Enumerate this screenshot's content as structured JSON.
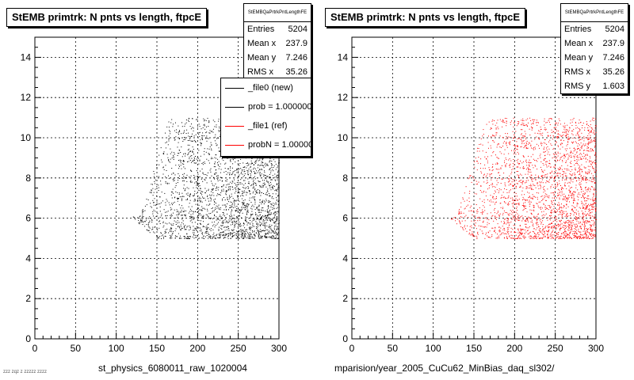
{
  "chart_data": [
    {
      "type": "scatter",
      "title": "StEMB primtrk: N pnts vs length, ftpcE",
      "xlabel": "st_physics_6080011_raw_1020004",
      "ylabel": "",
      "xlim": [
        0,
        300
      ],
      "ylim": [
        0,
        15
      ],
      "x_ticks": [
        0,
        50,
        100,
        150,
        200,
        250,
        300
      ],
      "y_ticks": [
        0,
        2,
        4,
        6,
        8,
        10,
        12,
        14
      ],
      "grid": true,
      "marker_color": "#000000",
      "point_region": {
        "x": [
          120,
          300
        ],
        "y": [
          5,
          11
        ]
      },
      "stats": {
        "name": "StEMBQaPrtrkPntLengthFE",
        "rows": [
          {
            "label": "Entries",
            "value": "5204"
          },
          {
            "label": "Mean x",
            "value": "237.9"
          },
          {
            "label": "Mean y",
            "value": "7.246"
          },
          {
            "label": "RMS x",
            "value": "35.26"
          }
        ]
      },
      "legend": {
        "placement": "top-right",
        "entries": [
          {
            "text": "_file0 (new)",
            "color": "#000000"
          },
          {
            "text": "prob = 1.000000",
            "color": "#000000"
          },
          {
            "text": "_file1 (ref)",
            "color": "#ff0000"
          },
          {
            "text": "probN = 1.000000",
            "color": "#ff0000"
          }
        ]
      }
    },
    {
      "type": "scatter",
      "title": "StEMB primtrk: N pnts vs length, ftpcE",
      "xlabel": "mparision/year_2005_CuCu62_MinBias_daq_sl302/",
      "ylabel": "",
      "xlim": [
        0,
        300
      ],
      "ylim": [
        0,
        15
      ],
      "x_ticks": [
        0,
        50,
        100,
        150,
        200,
        250,
        300
      ],
      "y_ticks": [
        0,
        2,
        4,
        6,
        8,
        10,
        12,
        14
      ],
      "grid": true,
      "marker_color": "#ff0000",
      "point_region": {
        "x": [
          120,
          300
        ],
        "y": [
          5,
          11
        ]
      },
      "stats": {
        "name": "StEMBQaPrtrkPntLengthFE",
        "rows": [
          {
            "label": "Entries",
            "value": "5204"
          },
          {
            "label": "Mean x",
            "value": "237.9"
          },
          {
            "label": "Mean y",
            "value": "7.246"
          },
          {
            "label": "RMS x",
            "value": "35.26"
          },
          {
            "label": "RMS y",
            "value": "1.603"
          }
        ]
      }
    }
  ],
  "footer_text": "zzz zqz z zzzzz zzzz"
}
